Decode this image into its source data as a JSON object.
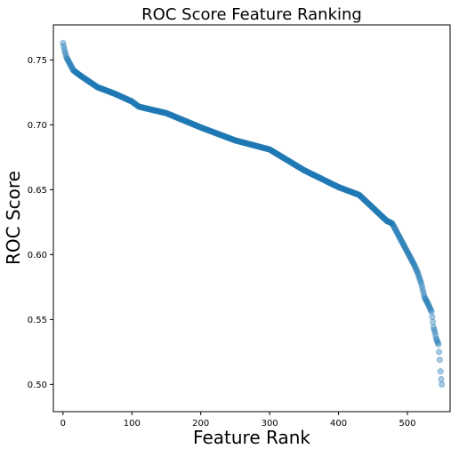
{
  "chart_data": {
    "type": "scatter",
    "title": "ROC Score Feature Ranking",
    "xlabel": "Feature Rank",
    "ylabel": "ROC Score",
    "xlim": [
      -14,
      562
    ],
    "ylim": [
      0.479,
      0.777
    ],
    "x_ticks": [
      0,
      100,
      200,
      300,
      400,
      500
    ],
    "y_ticks": [
      0.5,
      0.55,
      0.6,
      0.65,
      0.7,
      0.75
    ],
    "x_tick_labels": [
      "0",
      "100",
      "200",
      "300",
      "400",
      "500"
    ],
    "y_tick_labels": [
      "0.50",
      "0.55",
      "0.60",
      "0.65",
      "0.70",
      "0.75"
    ],
    "grid": false,
    "legend": "none",
    "point_color": "#1f77b4",
    "point_alpha": 0.4,
    "series": [
      {
        "x_start": 0,
        "x_step": 1,
        "keypoints": [
          [
            0,
            0.763
          ],
          [
            2,
            0.758
          ],
          [
            5,
            0.752
          ],
          [
            10,
            0.747
          ],
          [
            15,
            0.742
          ],
          [
            25,
            0.738
          ],
          [
            50,
            0.729
          ],
          [
            75,
            0.724
          ],
          [
            100,
            0.718
          ],
          [
            110,
            0.714
          ],
          [
            150,
            0.709
          ],
          [
            200,
            0.698
          ],
          [
            250,
            0.688
          ],
          [
            300,
            0.681
          ],
          [
            350,
            0.665
          ],
          [
            400,
            0.652
          ],
          [
            430,
            0.646
          ],
          [
            450,
            0.636
          ],
          [
            470,
            0.626
          ],
          [
            478,
            0.624
          ],
          [
            490,
            0.612
          ],
          [
            500,
            0.602
          ],
          [
            510,
            0.592
          ],
          [
            515,
            0.586
          ],
          [
            520,
            0.578
          ],
          [
            525,
            0.567
          ],
          [
            530,
            0.562
          ],
          [
            535,
            0.556
          ],
          [
            538,
            0.544
          ],
          [
            540,
            0.54
          ],
          [
            542,
            0.535
          ],
          [
            545,
            0.531
          ],
          [
            547,
            0.519
          ],
          [
            548,
            0.51
          ],
          [
            549,
            0.504
          ],
          [
            550,
            0.5
          ]
        ]
      }
    ]
  }
}
